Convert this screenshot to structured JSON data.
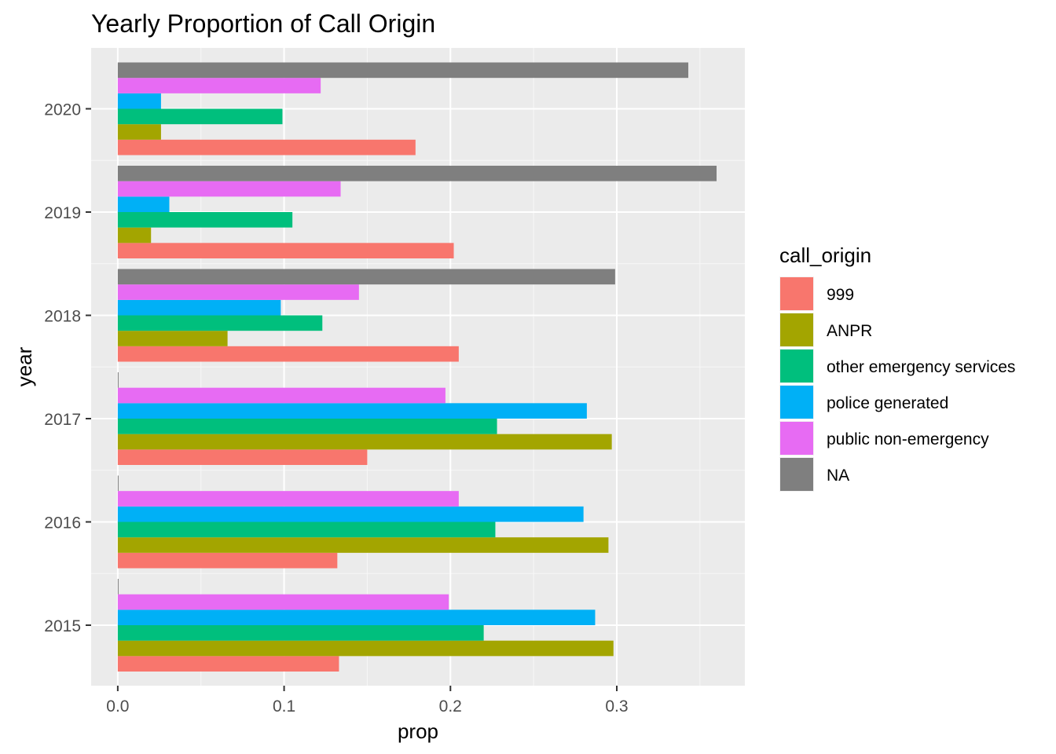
{
  "chart_data": {
    "type": "bar",
    "orientation": "horizontal",
    "title": "Yearly Proportion of Call Origin",
    "xlabel": "prop",
    "ylabel": "year",
    "xlim": [
      -0.016,
      0.377
    ],
    "x_ticks": [
      0.0,
      0.1,
      0.2,
      0.3
    ],
    "x_tick_labels": [
      "0.0",
      "0.1",
      "0.2",
      "0.3"
    ],
    "categories": [
      "2015",
      "2016",
      "2017",
      "2018",
      "2019",
      "2020"
    ],
    "grid": true,
    "legend": {
      "title": "call_origin",
      "position": "right"
    },
    "series": [
      {
        "name": "999",
        "color": "#F8766D",
        "values": [
          0.133,
          0.132,
          0.15,
          0.205,
          0.202,
          0.179
        ]
      },
      {
        "name": "ANPR",
        "color": "#A3A500",
        "values": [
          0.298,
          0.295,
          0.297,
          0.066,
          0.02,
          0.026
        ]
      },
      {
        "name": "other emergency services",
        "color": "#00BF7D",
        "values": [
          0.22,
          0.227,
          0.228,
          0.123,
          0.105,
          0.099
        ]
      },
      {
        "name": "police generated",
        "color": "#00B0F6",
        "values": [
          0.287,
          0.28,
          0.282,
          0.098,
          0.031,
          0.026
        ]
      },
      {
        "name": "public non-emergency",
        "color": "#E76BF3",
        "values": [
          0.199,
          0.205,
          0.197,
          0.145,
          0.134,
          0.122
        ]
      },
      {
        "name": "NA",
        "color": "#7F7F7F",
        "values": [
          0.0005,
          0.0005,
          0.0005,
          0.299,
          0.36,
          0.343
        ]
      }
    ]
  }
}
